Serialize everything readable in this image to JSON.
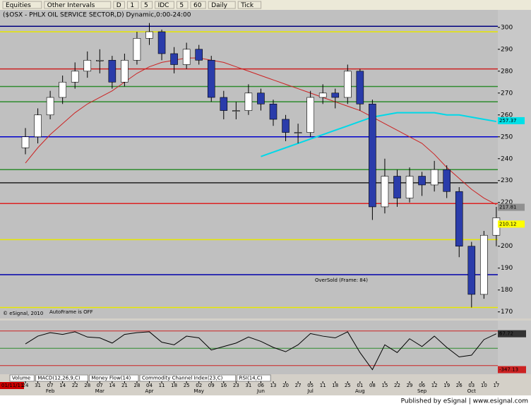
{
  "toolbar": [
    "Equities",
    "Other Intervals",
    "D",
    "1",
    "5",
    "IDC",
    "5",
    "60",
    "Daily",
    "Tick"
  ],
  "tabs": [
    "Volume",
    "MACD(12,26,9,C)",
    "Money Flow(14)",
    "Commodity Channel Index(23,C)",
    "RSI(14,C)"
  ],
  "footer": "Published by eSignal | www.esignal.com",
  "chart_data": {
    "type": "candlestick",
    "title": "($OSX - PHLX OIL SERVICE SECTOR,D) Dynamic,0:00-24:00",
    "start_date": "01/11/11",
    "oversold_note": "OverSold (Frame: 84)",
    "autoframe_note": "AutoFrame is OFF",
    "copyright": "© eSignal, 2010",
    "categories": [
      "24",
      "31",
      "07",
      "14",
      "22",
      "28",
      "07",
      "14",
      "21",
      "28",
      "04",
      "11",
      "18",
      "25",
      "02",
      "09",
      "16",
      "23",
      "31",
      "06",
      "13",
      "20",
      "27",
      "05",
      "11",
      "18",
      "25",
      "01",
      "08",
      "15",
      "22",
      "29",
      "06",
      "12",
      "19",
      "26",
      "03",
      "10",
      "17"
    ],
    "months": [
      "Feb",
      "Mar",
      "Apr",
      "May",
      "Jun",
      "Jul",
      "Aug",
      "Sep",
      "Oct"
    ],
    "open": [
      245,
      250,
      260,
      268,
      275,
      280,
      285,
      285,
      275,
      285,
      295,
      298,
      288,
      283,
      290,
      285,
      268,
      262,
      262,
      270,
      265,
      258,
      252,
      252,
      268,
      270,
      268,
      280,
      265,
      218,
      232,
      222,
      232,
      228,
      235,
      225,
      200,
      178,
      205
    ],
    "high": [
      254,
      263,
      271,
      278,
      284,
      289,
      290,
      287,
      288,
      298,
      302,
      299,
      291,
      293,
      292,
      287,
      271,
      266,
      274,
      272,
      267,
      260,
      256,
      271,
      274,
      272,
      283,
      281,
      267,
      240,
      235,
      236,
      234,
      239,
      237,
      227,
      202,
      207,
      218
    ],
    "low": [
      242,
      247,
      258,
      265,
      272,
      277,
      279,
      272,
      273,
      283,
      292,
      285,
      279,
      281,
      283,
      266,
      258,
      258,
      260,
      262,
      255,
      248,
      247,
      250,
      265,
      263,
      265,
      262,
      212,
      215,
      218,
      220,
      223,
      225,
      222,
      195,
      172,
      176,
      200
    ],
    "close": [
      250,
      260,
      268,
      275,
      280,
      285,
      285,
      275,
      285,
      295,
      298,
      288,
      283,
      290,
      285,
      268,
      262,
      262,
      270,
      265,
      258,
      252,
      252,
      268,
      270,
      268,
      280,
      265,
      218,
      232,
      222,
      232,
      228,
      235,
      225,
      200,
      178,
      205,
      213
    ],
    "up_color": "#ffffff",
    "down_color": "#2a3caa",
    "series": [
      {
        "color": "#cc2222",
        "values": [
          238,
          245,
          251,
          256,
          261,
          265,
          268,
          271,
          275,
          279,
          282,
          284,
          285,
          286,
          286,
          285,
          284,
          282,
          280,
          278,
          276,
          274,
          272,
          270,
          268,
          266,
          264,
          262,
          259,
          256,
          253,
          250,
          247,
          242,
          236,
          231,
          226,
          222,
          219
        ]
      },
      {
        "color": "#00d8e8",
        "values": [
          null,
          null,
          null,
          null,
          null,
          null,
          null,
          null,
          null,
          null,
          null,
          null,
          null,
          null,
          null,
          null,
          null,
          null,
          null,
          241,
          243,
          245,
          247,
          249,
          251,
          253,
          255,
          257,
          259,
          260,
          261,
          261,
          261,
          261,
          260,
          260,
          259,
          258,
          257
        ]
      }
    ],
    "levels": [
      {
        "value": 300.5,
        "color": "#000080"
      },
      {
        "value": 298,
        "color": "#e6e600"
      },
      {
        "value": 281,
        "color": "#cc2222"
      },
      {
        "value": 273,
        "color": "#2e8b2e"
      },
      {
        "value": 266,
        "color": "#2e8b2e"
      },
      {
        "value": 250,
        "color": "#0000cc"
      },
      {
        "value": 235,
        "color": "#2e8b2e"
      },
      {
        "value": 229,
        "color": "#222222"
      },
      {
        "value": 219.5,
        "color": "#dd2222"
      },
      {
        "value": 203,
        "color": "#e6e600"
      },
      {
        "value": 187,
        "color": "#0000aa"
      },
      {
        "value": 172,
        "color": "#e6e600"
      }
    ],
    "price_tags": [
      {
        "label": "257.37",
        "value": 257.37,
        "color": "#00e0e8"
      },
      {
        "label": "217.81",
        "value": 217.81,
        "color": "#909090"
      },
      {
        "label": "210.12",
        "value": 210.12,
        "color": "#ffff00"
      }
    ],
    "ylim": [
      167,
      308
    ],
    "yticks": [
      170,
      180,
      190,
      200,
      210,
      220,
      230,
      240,
      250,
      260,
      270,
      280,
      290,
      300
    ],
    "indicator": {
      "color": "#000000",
      "values": [
        -50,
        40,
        80,
        60,
        90,
        30,
        20,
        -40,
        60,
        80,
        90,
        -30,
        -60,
        40,
        20,
        -120,
        -80,
        -40,
        30,
        -20,
        -90,
        -140,
        -60,
        70,
        40,
        20,
        90,
        -150,
        -347.13,
        -60,
        -150,
        10,
        -80,
        40,
        -90,
        -200,
        -180,
        0,
        67.72
      ],
      "value_labels": {
        "38": "67.72",
        "28": "-347.13"
      },
      "ylim": [
        -400,
        220
      ],
      "levels": [
        {
          "value": 100,
          "color": "#cc2222"
        },
        {
          "value": -100,
          "color": "#2e8b2e"
        },
        {
          "value": -300,
          "color": "#cc2222"
        }
      ]
    }
  }
}
